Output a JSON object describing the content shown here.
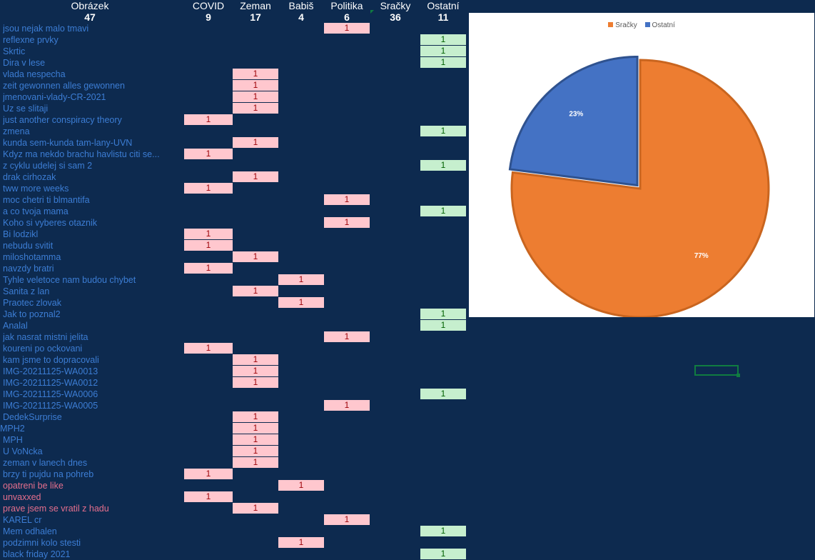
{
  "columns": [
    {
      "key": "obr",
      "title": "Obrázek",
      "count": "47"
    },
    {
      "key": "covid",
      "title": "COVID",
      "count": "9"
    },
    {
      "key": "zeman",
      "title": "Zeman",
      "count": "17"
    },
    {
      "key": "babis",
      "title": "Babiš",
      "count": "4"
    },
    {
      "key": "politika",
      "title": "Politika",
      "count": "6"
    },
    {
      "key": "sracky",
      "title": "Sračky",
      "count": "36"
    },
    {
      "key": "ostatni",
      "title": "Ostatní",
      "count": "11"
    }
  ],
  "rows": [
    {
      "name": "jsou nejak malo tmavi",
      "col": "politika",
      "val": "1"
    },
    {
      "name": "reflexne prvky",
      "col": "ostatni",
      "val": "1"
    },
    {
      "name": "Skrtic",
      "col": "ostatni",
      "val": "1"
    },
    {
      "name": "Dira v lese",
      "col": "ostatni",
      "val": "1"
    },
    {
      "name": "vlada nespecha",
      "col": "zeman",
      "val": "1"
    },
    {
      "name": "zeit gewonnen alles gewonnen",
      "col": "zeman",
      "val": "1"
    },
    {
      "name": "jmenovani-vlady-CR-2021",
      "col": "zeman",
      "val": "1"
    },
    {
      "name": "Uz se slitaji",
      "col": "zeman",
      "val": "1"
    },
    {
      "name": "just another conspiracy theory",
      "col": "covid",
      "val": "1"
    },
    {
      "name": "zmena",
      "col": "ostatni",
      "val": "1"
    },
    {
      "name": "kunda sem-kunda tam-lany-UVN",
      "col": "zeman",
      "val": "1"
    },
    {
      "name": "Kdyz ma nekdo brachu havlistu citi se...",
      "col": "covid",
      "val": "1"
    },
    {
      "name": "z cyklu udelej si sam 2",
      "col": "ostatni",
      "val": "1"
    },
    {
      "name": "drak cirhozak",
      "col": "zeman",
      "val": "1"
    },
    {
      "name": "tww more weeks",
      "col": "covid",
      "val": "1"
    },
    {
      "name": "moc chetri ti blmantifa",
      "col": "politika",
      "val": "1"
    },
    {
      "name": "a co tvoja mama",
      "col": "ostatni",
      "val": "1"
    },
    {
      "name": "Koho si vyberes otaznik",
      "col": "politika",
      "val": "1"
    },
    {
      "name": "Bi lodzikl",
      "col": "covid",
      "val": "1"
    },
    {
      "name": "nebudu svitit",
      "col": "covid",
      "val": "1"
    },
    {
      "name": "miloshotamma",
      "col": "zeman",
      "val": "1"
    },
    {
      "name": "navzdy bratri",
      "col": "covid",
      "val": "1"
    },
    {
      "name": "Tyhle veletoce nam budou chybet",
      "col": "babis",
      "val": "1"
    },
    {
      "name": "Sanita z lan",
      "col": "zeman",
      "val": "1"
    },
    {
      "name": "Praotec zlovak",
      "col": "babis",
      "val": "1"
    },
    {
      "name": "Jak to poznal2",
      "col": "ostatni",
      "val": "1"
    },
    {
      "name": "Analal",
      "col": "ostatni",
      "val": "1"
    },
    {
      "name": "jak nasrat mistni jelita",
      "col": "politika",
      "val": "1"
    },
    {
      "name": "koureni po ockovani",
      "col": "covid",
      "val": "1"
    },
    {
      "name": "kam jsme to dopracovali",
      "col": "zeman",
      "val": "1"
    },
    {
      "name": "IMG-20211125-WA0013",
      "col": "zeman",
      "val": "1"
    },
    {
      "name": "IMG-20211125-WA0012",
      "col": "zeman",
      "val": "1"
    },
    {
      "name": "IMG-20211125-WA0006",
      "col": "ostatni",
      "val": "1"
    },
    {
      "name": "IMG-20211125-WA0005",
      "col": "politika",
      "val": "1"
    },
    {
      "name": "DedekSurprise",
      "col": "zeman",
      "val": "1"
    },
    {
      "name": "MPH2",
      "col": "zeman",
      "val": "1",
      "shift": true
    },
    {
      "name": "MPH",
      "col": "zeman",
      "val": "1"
    },
    {
      "name": "U VoNcka",
      "col": "zeman",
      "val": "1"
    },
    {
      "name": "zeman v lanech dnes",
      "col": "zeman",
      "val": "1"
    },
    {
      "name": "brzy ti pujdu na pohreb",
      "col": "covid",
      "val": "1"
    },
    {
      "name": "opatreni be like",
      "col": "babis",
      "val": "1",
      "pink": true
    },
    {
      "name": "unvaxxed",
      "col": "covid",
      "val": "1",
      "pink": true
    },
    {
      "name": "prave jsem se vratil z hadu",
      "col": "zeman",
      "val": "1",
      "pink": true
    },
    {
      "name": "KAREL cr",
      "col": "politika",
      "val": "1"
    },
    {
      "name": "Mem odhalen",
      "col": "ostatni",
      "val": "1"
    },
    {
      "name": "podzimni kolo stesti",
      "col": "babis",
      "val": "1"
    },
    {
      "name": "black friday 2021",
      "col": "ostatni",
      "val": "1"
    }
  ],
  "chart_data": {
    "type": "pie",
    "legend_position": "top",
    "series": [
      {
        "values": [
          77,
          23
        ]
      }
    ],
    "labels": [
      "Sračky",
      "Ostatní"
    ],
    "values": [
      77,
      23
    ],
    "data_labels": [
      "77%",
      "23%"
    ],
    "colors": [
      "#ed7d31",
      "#4472c4"
    ]
  }
}
